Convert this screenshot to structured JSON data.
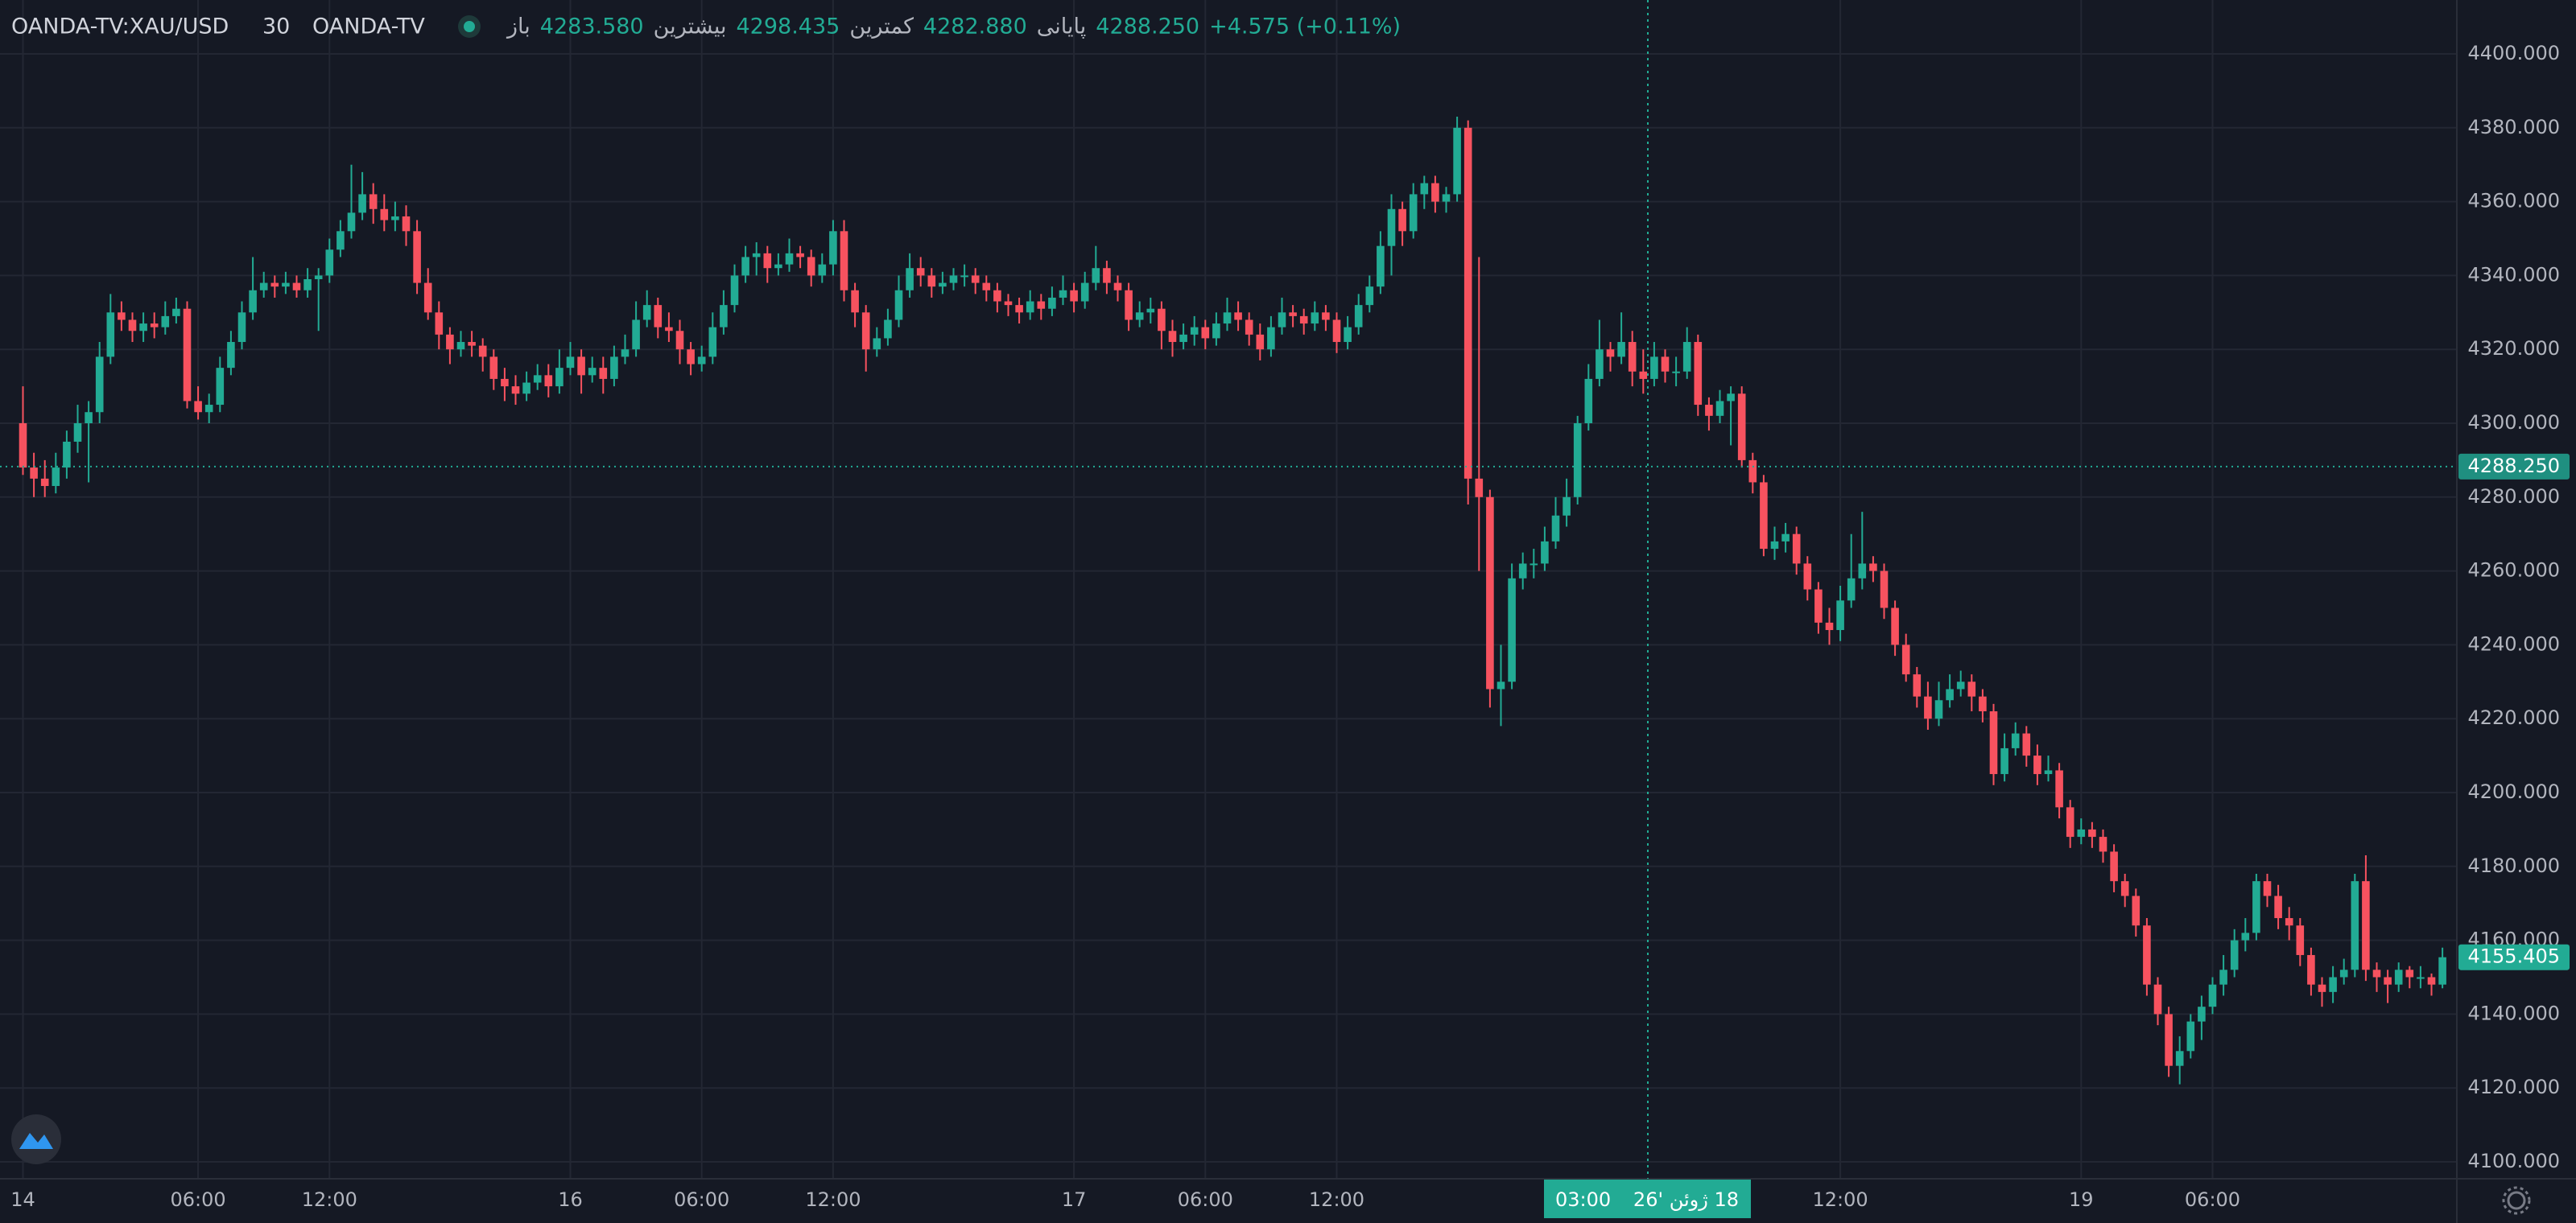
{
  "chart_data": {
    "type": "candlestick",
    "symbol": "OANDA-TV:XAU/USD",
    "interval": "30",
    "source": "OANDA-TV",
    "legend_items": [
      {
        "label": "باز",
        "value": "4283.580"
      },
      {
        "label": "بیشترین",
        "value": "4298.435"
      },
      {
        "label": "کمترین",
        "value": "4282.880"
      },
      {
        "label": "پایانی",
        "value": "4288.250"
      }
    ],
    "change": "+4.575 (+0.11%)",
    "up_color": "#22ab94",
    "down_color": "#f7525f",
    "grid": true,
    "open": [
      4300,
      4288,
      4285,
      4283,
      4288,
      4295,
      4300,
      4303,
      4318,
      4330,
      4328,
      4325,
      4327,
      4326,
      4329,
      4331,
      4306,
      4303,
      4305,
      4315,
      4322,
      4330,
      4336,
      4338,
      4337,
      4338,
      4336,
      4339,
      4340,
      4347,
      4352,
      4357,
      4362,
      4358,
      4355,
      4356,
      4352,
      4338,
      4330,
      4324,
      4320,
      4322,
      4321,
      4318,
      4312,
      4310,
      4308,
      4311,
      4313,
      4310,
      4315,
      4318,
      4313,
      4315,
      4312,
      4318,
      4320,
      4328,
      4332,
      4326,
      4325,
      4320,
      4316,
      4318,
      4326,
      4332,
      4340,
      4345,
      4346,
      4342,
      4343,
      4346,
      4345,
      4340,
      4343,
      4352,
      4336,
      4330,
      4320,
      4323,
      4328,
      4336,
      4342,
      4340,
      4337,
      4338,
      4340,
      4340,
      4338,
      4336,
      4333,
      4332,
      4330,
      4333,
      4331,
      4334,
      4336,
      4333,
      4338,
      4342,
      4338,
      4336,
      4328,
      4330,
      4331,
      4325,
      4322,
      4324,
      4326,
      4323,
      4327,
      4330,
      4328,
      4324,
      4320,
      4326,
      4330,
      4329,
      4327,
      4330,
      4328,
      4322,
      4326,
      4332,
      4337,
      4348,
      4358,
      4352,
      4362,
      4365,
      4360,
      4362,
      4380,
      4285,
      4280,
      4228,
      4230,
      4258,
      4262,
      4262,
      4268,
      4275,
      4280,
      4300,
      4312,
      4320,
      4318,
      4322,
      4314,
      4312,
      4318,
      4314,
      4314,
      4322,
      4305,
      4302,
      4306,
      4308,
      4290,
      4284,
      4266,
      4268,
      4270,
      4262,
      4255,
      4246,
      4244,
      4252,
      4258,
      4262,
      4260,
      4250,
      4240,
      4232,
      4226,
      4220,
      4225,
      4228,
      4230,
      4226,
      4222,
      4205,
      4212,
      4216,
      4210,
      4205,
      4206,
      4196,
      4188,
      4190,
      4188,
      4184,
      4176,
      4172,
      4164,
      4148,
      4140,
      4126,
      4130,
      4138,
      4142,
      4148,
      4152,
      4160,
      4162,
      4176,
      4172,
      4166,
      4164,
      4156,
      4148,
      4146,
      4150,
      4152,
      4176,
      4152,
      4150,
      4148,
      4152,
      4150,
      4150,
      4148
    ],
    "high": [
      4310,
      4292,
      4290,
      4292,
      4298,
      4305,
      4306,
      4322,
      4335,
      4333,
      4330,
      4330,
      4330,
      4333,
      4334,
      4333,
      4310,
      4308,
      4318,
      4325,
      4333,
      4345,
      4341,
      4340,
      4341,
      4340,
      4342,
      4342,
      4350,
      4355,
      4370,
      4368,
      4365,
      4362,
      4360,
      4359,
      4355,
      4342,
      4333,
      4326,
      4325,
      4325,
      4323,
      4320,
      4315,
      4313,
      4314,
      4316,
      4316,
      4320,
      4322,
      4320,
      4318,
      4318,
      4321,
      4324,
      4333,
      4336,
      4334,
      4330,
      4328,
      4322,
      4321,
      4330,
      4336,
      4343,
      4348,
      4349,
      4348,
      4346,
      4350,
      4348,
      4347,
      4346,
      4355,
      4355,
      4338,
      4332,
      4326,
      4331,
      4340,
      4346,
      4345,
      4342,
      4341,
      4342,
      4343,
      4342,
      4340,
      4338,
      4335,
      4334,
      4336,
      4335,
      4337,
      4340,
      4338,
      4341,
      4348,
      4344,
      4340,
      4338,
      4333,
      4334,
      4333,
      4328,
      4327,
      4329,
      4328,
      4330,
      4334,
      4333,
      4330,
      4327,
      4329,
      4334,
      4332,
      4331,
      4333,
      4332,
      4330,
      4329,
      4335,
      4340,
      4352,
      4362,
      4360,
      4365,
      4367,
      4367,
      4364,
      4383,
      4382,
      4345,
      4282,
      4240,
      4262,
      4265,
      4266,
      4272,
      4280,
      4285,
      4302,
      4316,
      4328,
      4322,
      4330,
      4325,
      4320,
      4322,
      4320,
      4318,
      4326,
      4324,
      4307,
      4309,
      4310,
      4310,
      4292,
      4286,
      4272,
      4273,
      4272,
      4264,
      4257,
      4250,
      4256,
      4270,
      4276,
      4264,
      4262,
      4252,
      4243,
      4234,
      4230,
      4230,
      4232,
      4233,
      4232,
      4228,
      4224,
      4216,
      4219,
      4218,
      4213,
      4210,
      4208,
      4198,
      4193,
      4192,
      4190,
      4186,
      4178,
      4174,
      4166,
      4150,
      4142,
      4134,
      4140,
      4145,
      4150,
      4156,
      4163,
      4166,
      4178,
      4178,
      4175,
      4169,
      4166,
      4158,
      4150,
      4153,
      4155,
      4178,
      4183,
      4154,
      4152,
      4154,
      4153,
      4153,
      4151,
      4158
    ],
    "low": [
      4286,
      4280,
      4280,
      4281,
      4285,
      4292,
      4284,
      4300,
      4316,
      4325,
      4322,
      4322,
      4323,
      4324,
      4327,
      4304,
      4301,
      4300,
      4303,
      4313,
      4320,
      4328,
      4334,
      4334,
      4335,
      4334,
      4334,
      4325,
      4338,
      4345,
      4350,
      4355,
      4354,
      4352,
      4352,
      4348,
      4335,
      4328,
      4320,
      4316,
      4318,
      4318,
      4314,
      4309,
      4306,
      4305,
      4306,
      4309,
      4307,
      4308,
      4313,
      4308,
      4311,
      4308,
      4310,
      4316,
      4318,
      4326,
      4323,
      4322,
      4316,
      4313,
      4314,
      4316,
      4324,
      4330,
      4338,
      4340,
      4338,
      4340,
      4341,
      4342,
      4337,
      4338,
      4340,
      4333,
      4326,
      4314,
      4318,
      4321,
      4326,
      4334,
      4337,
      4334,
      4335,
      4336,
      4337,
      4335,
      4333,
      4330,
      4329,
      4327,
      4328,
      4328,
      4329,
      4332,
      4330,
      4331,
      4336,
      4335,
      4333,
      4325,
      4326,
      4327,
      4320,
      4318,
      4320,
      4321,
      4320,
      4321,
      4325,
      4325,
      4321,
      4317,
      4318,
      4324,
      4326,
      4324,
      4325,
      4325,
      4319,
      4320,
      4324,
      4330,
      4335,
      4340,
      4348,
      4350,
      4358,
      4357,
      4357,
      4360,
      4278,
      4260,
      4223,
      4218,
      4228,
      4255,
      4258,
      4260,
      4266,
      4272,
      4278,
      4298,
      4310,
      4314,
      4316,
      4310,
      4308,
      4310,
      4311,
      4310,
      4312,
      4302,
      4298,
      4300,
      4294,
      4288,
      4281,
      4264,
      4263,
      4265,
      4259,
      4252,
      4243,
      4240,
      4241,
      4250,
      4255,
      4257,
      4247,
      4237,
      4230,
      4223,
      4217,
      4218,
      4223,
      4226,
      4222,
      4219,
      4202,
      4203,
      4210,
      4207,
      4202,
      4203,
      4193,
      4185,
      4186,
      4185,
      4181,
      4173,
      4169,
      4161,
      4145,
      4137,
      4123,
      4121,
      4128,
      4133,
      4140,
      4145,
      4150,
      4157,
      4160,
      4169,
      4163,
      4160,
      4153,
      4145,
      4142,
      4143,
      4148,
      4150,
      4149,
      4146,
      4143,
      4146,
      4147,
      4147,
      4145,
      4147
    ],
    "close": [
      4288,
      4285,
      4283,
      4288,
      4295,
      4300,
      4303,
      4318,
      4330,
      4328,
      4325,
      4327,
      4326,
      4329,
      4331,
      4306,
      4303,
      4305,
      4315,
      4322,
      4330,
      4336,
      4338,
      4337,
      4338,
      4336,
      4339,
      4340,
      4347,
      4352,
      4357,
      4362,
      4358,
      4355,
      4356,
      4352,
      4338,
      4330,
      4324,
      4320,
      4322,
      4321,
      4318,
      4312,
      4310,
      4308,
      4311,
      4313,
      4310,
      4315,
      4318,
      4313,
      4315,
      4312,
      4318,
      4320,
      4328,
      4332,
      4326,
      4325,
      4320,
      4316,
      4318,
      4326,
      4332,
      4340,
      4345,
      4346,
      4342,
      4343,
      4346,
      4345,
      4340,
      4343,
      4352,
      4336,
      4330,
      4320,
      4323,
      4328,
      4336,
      4342,
      4340,
      4337,
      4338,
      4340,
      4340,
      4338,
      4336,
      4333,
      4332,
      4330,
      4333,
      4331,
      4334,
      4336,
      4333,
      4338,
      4342,
      4338,
      4336,
      4328,
      4330,
      4331,
      4325,
      4322,
      4324,
      4326,
      4323,
      4327,
      4330,
      4328,
      4324,
      4320,
      4326,
      4330,
      4329,
      4327,
      4330,
      4328,
      4322,
      4326,
      4332,
      4337,
      4348,
      4358,
      4352,
      4362,
      4365,
      4360,
      4362,
      4380,
      4285,
      4280,
      4228,
      4230,
      4258,
      4262,
      4262,
      4268,
      4275,
      4280,
      4300,
      4312,
      4320,
      4318,
      4322,
      4314,
      4312,
      4318,
      4314,
      4314,
      4322,
      4305,
      4302,
      4306,
      4308,
      4290,
      4284,
      4266,
      4268,
      4270,
      4262,
      4255,
      4246,
      4244,
      4252,
      4258,
      4262,
      4260,
      4250,
      4240,
      4232,
      4226,
      4220,
      4225,
      4228,
      4230,
      4226,
      4222,
      4205,
      4212,
      4216,
      4210,
      4205,
      4206,
      4196,
      4188,
      4190,
      4188,
      4184,
      4176,
      4172,
      4164,
      4148,
      4140,
      4126,
      4130,
      4138,
      4142,
      4148,
      4152,
      4160,
      4162,
      4176,
      4172,
      4166,
      4164,
      4156,
      4148,
      4146,
      4150,
      4152,
      4176,
      4152,
      4150,
      4148,
      4152,
      4150,
      4150,
      4148,
      4155.405
    ],
    "last_price_label": "4155.405",
    "crosshair_price": {
      "value": 4288.25,
      "label": "4288.250"
    },
    "crosshair_time": "03:00",
    "crosshair_date": "18 ژوئن '26",
    "ylim": [
      4100,
      4400
    ],
    "yticks": [
      {
        "value": 4100,
        "label": "4100.000"
      },
      {
        "value": 4120,
        "label": "4120.000"
      },
      {
        "value": 4140,
        "label": "4140.000"
      },
      {
        "value": 4160,
        "label": "4160.000"
      },
      {
        "value": 4180,
        "label": "4180.000"
      },
      {
        "value": 4200,
        "label": "4200.000"
      },
      {
        "value": 4220,
        "label": "4220.000"
      },
      {
        "value": 4240,
        "label": "4240.000"
      },
      {
        "value": 4260,
        "label": "4260.000"
      },
      {
        "value": 4280,
        "label": "4280.000"
      },
      {
        "value": 4300,
        "label": "4300.000"
      },
      {
        "value": 4320,
        "label": "4320.000"
      },
      {
        "value": 4340,
        "label": "4340.000"
      },
      {
        "value": 4360,
        "label": "4360.000"
      },
      {
        "value": 4380,
        "label": "4380.000"
      },
      {
        "value": 4400,
        "label": "4400.000"
      }
    ],
    "xticks": [
      {
        "value": 0,
        "label": "14"
      },
      {
        "value": 16,
        "label": "06:00"
      },
      {
        "value": 28,
        "label": "12:00"
      },
      {
        "value": 50,
        "label": "16"
      },
      {
        "value": 62,
        "label": "06:00"
      },
      {
        "value": 74,
        "label": "12:00"
      },
      {
        "value": 96,
        "label": "17"
      },
      {
        "value": 108,
        "label": "06:00"
      },
      {
        "value": 120,
        "label": "12:00"
      },
      {
        "value": 166,
        "label": "12:00"
      },
      {
        "value": 188,
        "label": "19"
      },
      {
        "value": 200,
        "label": "06:00"
      }
    ]
  }
}
